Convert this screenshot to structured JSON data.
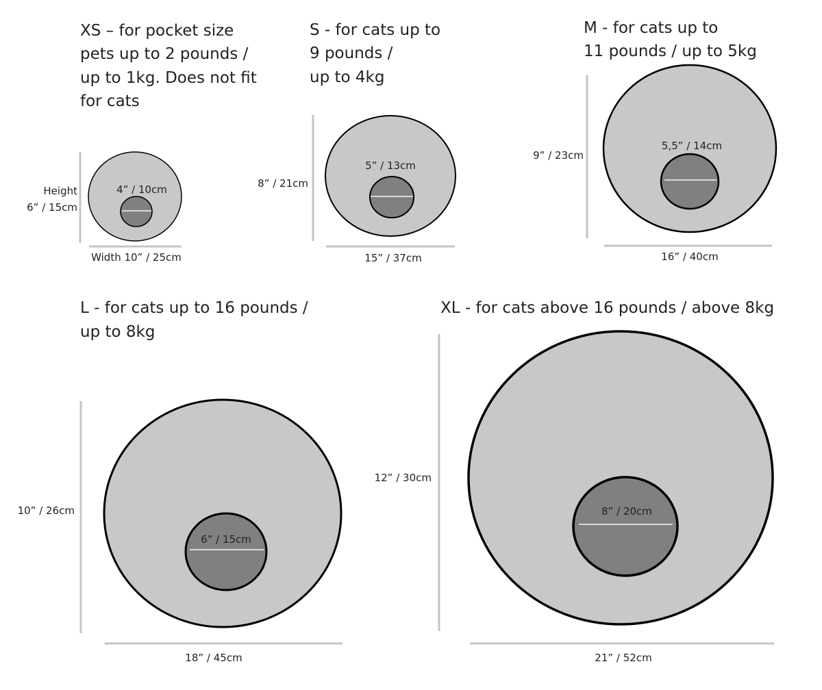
{
  "colors": {
    "bed_fill": "#c8c8c8",
    "opening_fill": "#808080",
    "outline": "#000000",
    "guide_lines": "#c4c4c4"
  },
  "sizes": [
    {
      "id": "xs",
      "title_lines": [
        "XS – for pocket size",
        "pets up to 2 pounds /",
        "up to 1kg. Does not fit",
        "for cats"
      ],
      "height_label": "Height",
      "height": "6” / 15cm",
      "width": "Width 10” / 25cm",
      "opening": "4” / 10cm"
    },
    {
      "id": "s",
      "title_lines": [
        "S - for cats up to",
        "9 pounds /",
        "up to 4kg"
      ],
      "height": "8” / 21cm",
      "width": "15” / 37cm",
      "opening": "5” / 13cm"
    },
    {
      "id": "m",
      "title_lines": [
        "M - for cats up to",
        "11 pounds / up to 5kg"
      ],
      "height": "9” / 23cm",
      "width": "16” / 40cm",
      "opening": "5,5” / 14cm"
    },
    {
      "id": "l",
      "title_lines": [
        "L - for cats up to 16 pounds /",
        "up to 8kg"
      ],
      "height": "10” / 26cm",
      "width": "18” / 45cm",
      "opening": "6” / 15cm"
    },
    {
      "id": "xl",
      "title_lines": [
        "XL - for cats above 16 pounds / above 8kg"
      ],
      "height": "12” / 30cm",
      "width": "21” / 52cm",
      "opening": "8” / 20cm"
    }
  ]
}
